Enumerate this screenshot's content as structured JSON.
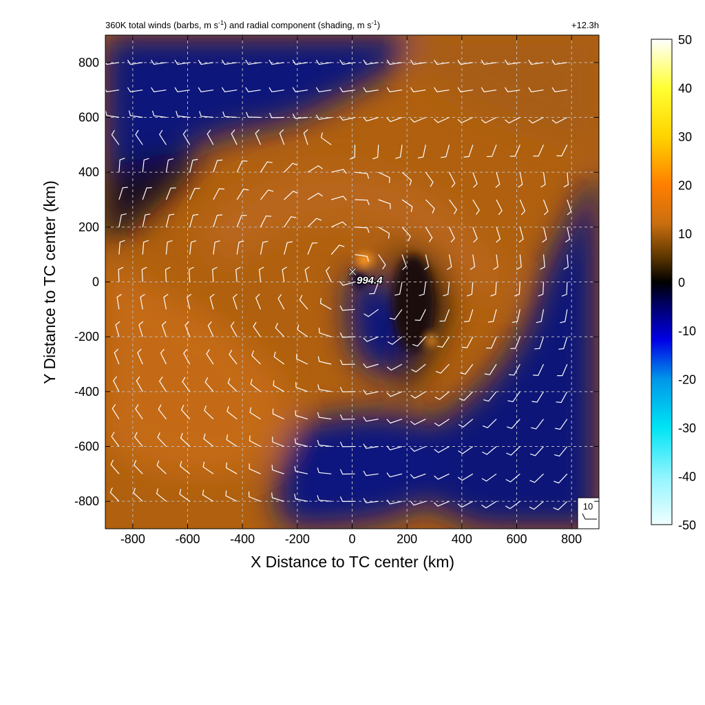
{
  "chart_data": {
    "type": "heatmap",
    "title": "360K total winds (barbs, m s⁻¹) and radial component (shading, m s⁻¹)",
    "title_parts": {
      "prefix": "360K total winds (barbs, m s",
      "sup1": "-1",
      "middle": ") and radial component (shading, m s",
      "sup2": "-1",
      "suffix": ")"
    },
    "forecast_hour_label": "+12.3h",
    "xlabel": "X Distance to TC center (km)",
    "ylabel": "Y Distance to TC center (km)",
    "xlim": [
      -900,
      900
    ],
    "ylim": [
      -900,
      900
    ],
    "xticks": [
      -800,
      -600,
      -400,
      -200,
      0,
      200,
      400,
      600,
      800
    ],
    "yticks": [
      -800,
      -600,
      -400,
      -200,
      0,
      200,
      400,
      600,
      800
    ],
    "grid": true,
    "center_marker": {
      "x": 0,
      "y": 35,
      "symbol": "×"
    },
    "center_label": "994.4",
    "barb_reference_label": "10",
    "colorbar": {
      "min": -50,
      "max": 50,
      "ticks": [
        50,
        40,
        30,
        20,
        10,
        0,
        -10,
        -20,
        -30,
        -40,
        -50
      ],
      "stops": [
        {
          "value": -50,
          "color": "#f0ffff"
        },
        {
          "value": -40,
          "color": "#8ff4ff"
        },
        {
          "value": -30,
          "color": "#00e4f4"
        },
        {
          "value": -20,
          "color": "#0096e8"
        },
        {
          "value": -12,
          "color": "#0000e6"
        },
        {
          "value": -5,
          "color": "#00006b"
        },
        {
          "value": 0,
          "color": "#000000"
        },
        {
          "value": 5,
          "color": "#5a3500"
        },
        {
          "value": 12,
          "color": "#c96e10"
        },
        {
          "value": 20,
          "color": "#ff7f00"
        },
        {
          "value": 30,
          "color": "#ffd400"
        },
        {
          "value": 40,
          "color": "#ffff33"
        },
        {
          "value": 50,
          "color": "#ffffff"
        }
      ]
    }
  }
}
